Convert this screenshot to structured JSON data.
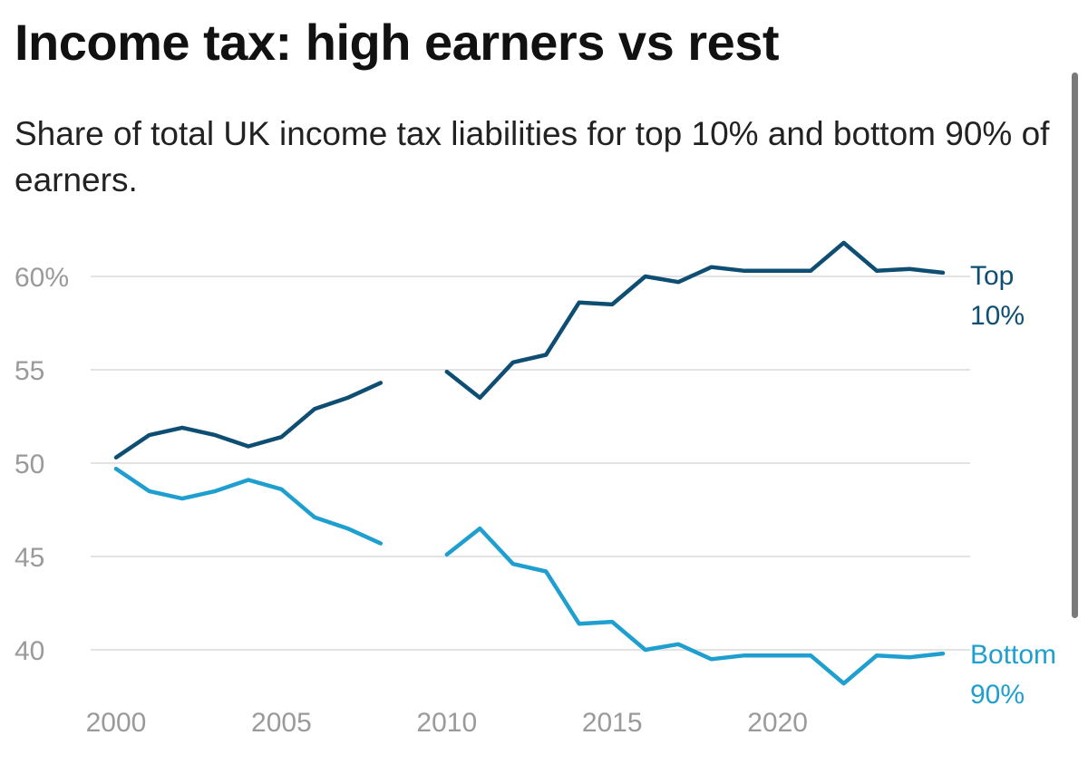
{
  "colors": {
    "top": "#0e4e73",
    "bottom": "#1f9fcf",
    "grid": "#e3e3e3",
    "tick_text": "#9a9a9a"
  },
  "chart_data": {
    "type": "line",
    "title": "Income tax: high earners vs rest",
    "subtitle": "Share of total UK income tax liabilities for top 10% and bottom 90% of earners.",
    "xlabel": "",
    "ylabel": "",
    "xlim": [
      1999.5,
      2025.5
    ],
    "ylim": [
      37.5,
      62.5
    ],
    "grid": true,
    "x_ticks": [
      2000,
      2005,
      2010,
      2015,
      2020
    ],
    "x_tick_labels": [
      "2000",
      "2005",
      "2010",
      "2015",
      "2020"
    ],
    "y_ticks": [
      40,
      45,
      50,
      55,
      60
    ],
    "y_tick_labels": [
      "40",
      "45",
      "50",
      "55",
      "60%"
    ],
    "x": [
      2000,
      2001,
      2002,
      2003,
      2004,
      2005,
      2006,
      2007,
      2008,
      2009,
      2010,
      2011,
      2012,
      2013,
      2014,
      2015,
      2016,
      2017,
      2018,
      2019,
      2020,
      2021,
      2022,
      2023,
      2024,
      2025
    ],
    "series": [
      {
        "name": "Top 10%",
        "label_lines": [
          "Top",
          "10%"
        ],
        "values": [
          50.3,
          51.5,
          51.9,
          51.5,
          50.9,
          51.4,
          52.9,
          53.5,
          54.3,
          null,
          54.9,
          53.5,
          55.4,
          55.8,
          58.6,
          58.5,
          60.0,
          59.7,
          60.5,
          60.3,
          60.3,
          60.3,
          61.8,
          60.3,
          60.4,
          60.2
        ]
      },
      {
        "name": "Bottom 90%",
        "label_lines": [
          "Bottom",
          "90%"
        ],
        "values": [
          49.7,
          48.5,
          48.1,
          48.5,
          49.1,
          48.6,
          47.1,
          46.5,
          45.7,
          null,
          45.1,
          46.5,
          44.6,
          44.2,
          41.4,
          41.5,
          40.0,
          40.3,
          39.5,
          39.7,
          39.7,
          39.7,
          38.2,
          39.7,
          39.6,
          39.8
        ]
      }
    ]
  }
}
